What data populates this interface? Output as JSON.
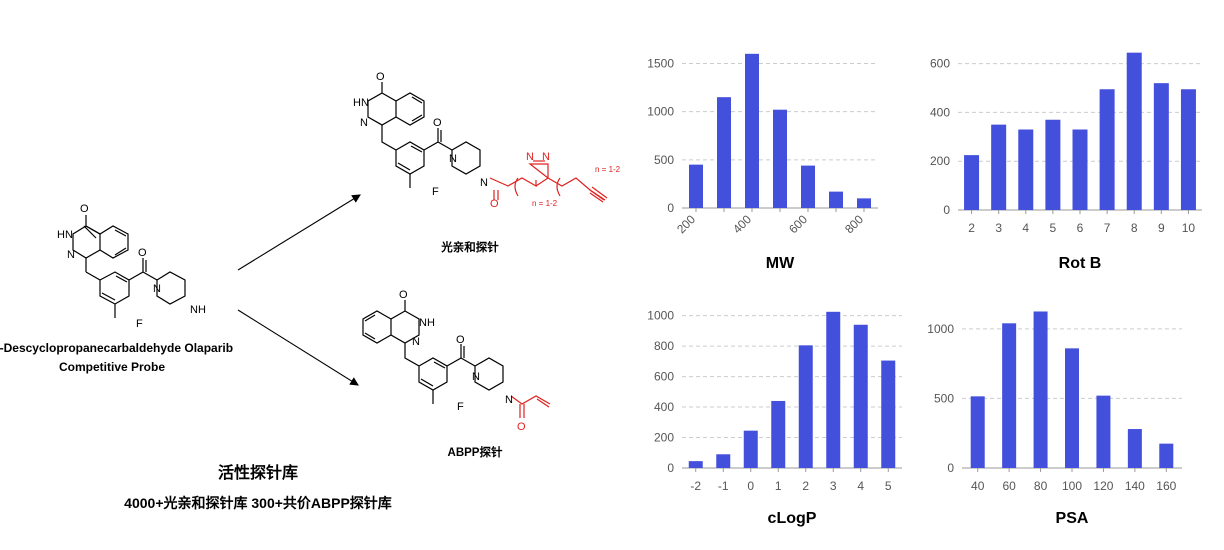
{
  "left_panel": {
    "probe_name_line1": "N-Descyclopropanecarbaldehyde Olaparib",
    "probe_name_line2": "Competitive Probe",
    "photo_probe_label": "光亲和探针",
    "abpp_probe_label": "ABPP探针",
    "library_title": "活性探针库",
    "library_subtitle": "4000+光亲和探针库  300+共价ABPP探针库",
    "n_label_1": "n = 1-2",
    "n_label_2": "n = 1-2",
    "atoms": {
      "O": "O",
      "HN": "HN",
      "NH": "NH",
      "N": "N",
      "F": "F"
    }
  },
  "colors": {
    "bar": "#4350dc",
    "red": "#e0211f",
    "grid": "#cccccc"
  },
  "chart_data": [
    {
      "type": "bar",
      "title": "MW",
      "x": [
        200,
        300,
        400,
        500,
        600,
        700,
        800
      ],
      "values": [
        450,
        1150,
        1600,
        1020,
        440,
        170,
        100
      ],
      "xticks": [
        200,
        400,
        600,
        800
      ],
      "ylim": [
        0,
        1650
      ],
      "yticks": [
        0,
        500,
        1000,
        1500
      ],
      "xtick_rotation": -45,
      "grid": true
    },
    {
      "type": "bar",
      "title": "Rot B",
      "categories": [
        "2",
        "3",
        "4",
        "5",
        "6",
        "7",
        "8",
        "9",
        "10"
      ],
      "values": [
        225,
        350,
        330,
        370,
        330,
        495,
        645,
        520,
        495
      ],
      "ylim": [
        0,
        660
      ],
      "yticks": [
        0,
        200,
        400,
        600
      ],
      "grid": true
    },
    {
      "type": "bar",
      "title": "cLogP",
      "categories": [
        "-2",
        "-1",
        "0",
        "1",
        "2",
        "3",
        "4",
        "5"
      ],
      "values": [
        45,
        90,
        245,
        440,
        805,
        1025,
        940,
        705
      ],
      "ylim": [
        0,
        1050
      ],
      "yticks": [
        0,
        200,
        400,
        600,
        800,
        1000
      ],
      "grid": true
    },
    {
      "type": "bar",
      "title": "PSA",
      "categories": [
        "40",
        "60",
        "80",
        "100",
        "120",
        "140",
        "160"
      ],
      "values": [
        515,
        1040,
        1125,
        860,
        520,
        280,
        175
      ],
      "ylim": [
        0,
        1150
      ],
      "yticks": [
        0,
        500,
        1000
      ],
      "grid": true
    }
  ]
}
